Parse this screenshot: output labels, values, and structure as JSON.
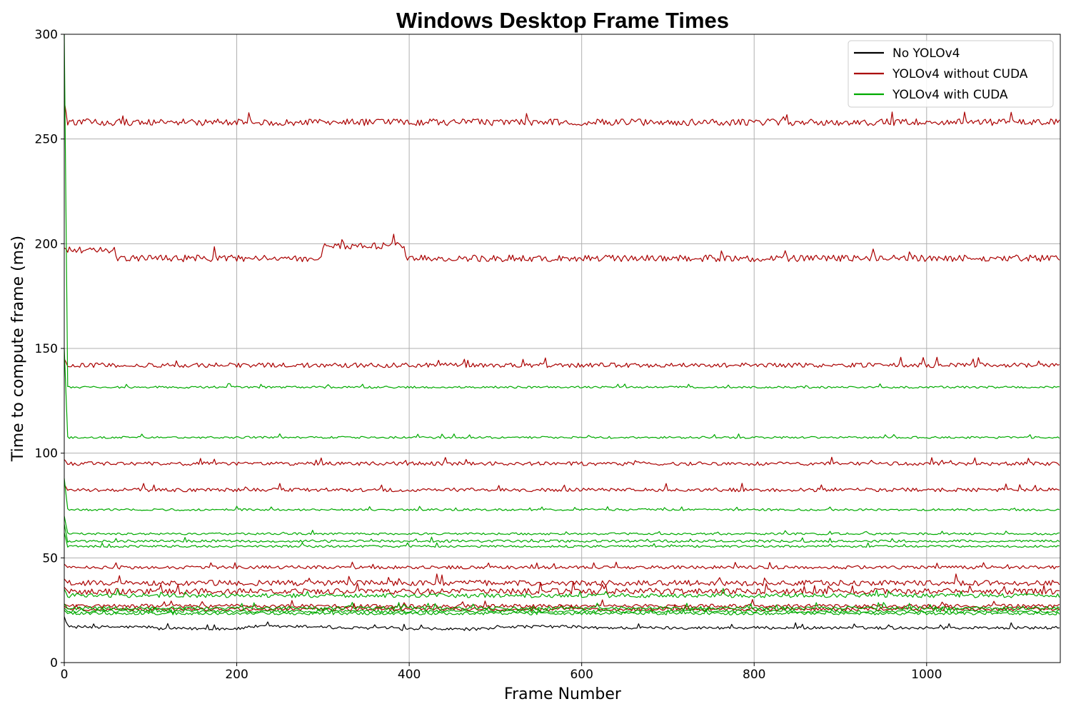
{
  "chart_data": {
    "type": "line",
    "title": "Windows Desktop Frame Times",
    "xlabel": "Frame Number",
    "ylabel": "Time to compute frame (ms)",
    "xlim": [
      0,
      1155
    ],
    "ylim": [
      0,
      300
    ],
    "xticks": [
      0,
      200,
      400,
      600,
      800,
      1000
    ],
    "yticks": [
      0,
      50,
      100,
      150,
      200,
      250,
      300
    ],
    "grid": true,
    "legend_position": "top-right",
    "legend": [
      {
        "name": "No YOLOv4",
        "color": "#000000"
      },
      {
        "name": "YOLOv4 without CUDA",
        "color": "#aa0000"
      },
      {
        "name": "YOLOv4 with CUDA",
        "color": "#00aa00"
      }
    ],
    "series": [
      {
        "name": "No YOLOv4",
        "color": "#000000",
        "baseline": 17,
        "noise": 0.7,
        "start": 22,
        "steps": [
          [
            105,
            16.2
          ],
          [
            210,
            17.2
          ],
          [
            310,
            16.5
          ],
          [
            380,
            16.0
          ],
          [
            500,
            17.2
          ],
          [
            600,
            16.6
          ]
        ]
      },
      {
        "name": "YOLOv4 without CUDA",
        "color": "#aa0000",
        "baseline": 258,
        "noise": 1.6,
        "start": 268
      },
      {
        "name": "YOLOv4 without CUDA",
        "color": "#aa0000",
        "baseline": 193,
        "noise": 1.6,
        "start": 198,
        "steps": [
          [
            0,
            197
          ],
          [
            60,
            193
          ],
          [
            300,
            199
          ],
          [
            395,
            193
          ]
        ]
      },
      {
        "name": "YOLOv4 without CUDA",
        "color": "#aa0000",
        "baseline": 142,
        "noise": 1.1,
        "start": 145
      },
      {
        "name": "YOLOv4 without CUDA",
        "color": "#aa0000",
        "baseline": 95,
        "noise": 0.9,
        "start": 97
      },
      {
        "name": "YOLOv4 without CUDA",
        "color": "#aa0000",
        "baseline": 82.5,
        "noise": 0.9,
        "start": 85
      },
      {
        "name": "YOLOv4 without CUDA",
        "color": "#aa0000",
        "baseline": 45.5,
        "noise": 0.8,
        "start": 47
      },
      {
        "name": "YOLOv4 without CUDA",
        "color": "#aa0000",
        "baseline": 38,
        "noise": 1.3,
        "start": 40
      },
      {
        "name": "YOLOv4 without CUDA",
        "color": "#aa0000",
        "baseline": 34,
        "noise": 1.4,
        "start": 36
      },
      {
        "name": "YOLOv4 without CUDA",
        "color": "#aa0000",
        "baseline": 27,
        "noise": 0.9,
        "start": 28
      },
      {
        "name": "YOLOv4 without CUDA",
        "color": "#aa0000",
        "baseline": 25.5,
        "noise": 0.8,
        "start": 27
      },
      {
        "name": "YOLOv4 with CUDA",
        "color": "#00aa00",
        "baseline": 131.5,
        "noise": 0.5,
        "start": 300
      },
      {
        "name": "YOLOv4 with CUDA",
        "color": "#00aa00",
        "baseline": 107.5,
        "noise": 0.5,
        "start": 150
      },
      {
        "name": "YOLOv4 with CUDA",
        "color": "#00aa00",
        "baseline": 73,
        "noise": 0.5,
        "start": 88
      },
      {
        "name": "YOLOv4 with CUDA",
        "color": "#00aa00",
        "baseline": 61.5,
        "noise": 0.5,
        "start": 70
      },
      {
        "name": "YOLOv4 with CUDA",
        "color": "#00aa00",
        "baseline": 58,
        "noise": 0.6,
        "start": 66
      },
      {
        "name": "YOLOv4 with CUDA",
        "color": "#00aa00",
        "baseline": 55.5,
        "noise": 0.5,
        "start": 62
      },
      {
        "name": "YOLOv4 with CUDA",
        "color": "#00aa00",
        "baseline": 32,
        "noise": 1.0,
        "start": 35
      },
      {
        "name": "YOLOv4 with CUDA",
        "color": "#00aa00",
        "baseline": 26,
        "noise": 0.8,
        "start": 28
      },
      {
        "name": "YOLOv4 with CUDA",
        "color": "#00aa00",
        "baseline": 24.5,
        "noise": 0.7,
        "start": 26
      },
      {
        "name": "YOLOv4 with CUDA",
        "color": "#00aa00",
        "baseline": 23.5,
        "noise": 0.7,
        "start": 25
      }
    ]
  }
}
